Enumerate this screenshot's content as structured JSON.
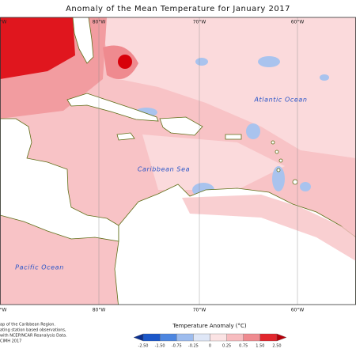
{
  "title": "Anomaly of the Mean Temperature for January 2017",
  "longitude_labels_top": [
    "°W",
    "80°W",
    "70°W",
    "60°W"
  ],
  "longitude_labels_bottom": [
    "°W",
    "80°W",
    "70°W",
    "60°W"
  ],
  "ocean_labels": [
    "Atlantic Ocean",
    "Caribbean Sea",
    "Pacific Ocean"
  ],
  "notes": [
    "ap of the Caribbean Region.",
    "ating station based observations,",
    "with NCEP/NCAR Reanalysis Data.",
    "CIMH 2017"
  ],
  "legend": {
    "title": "Temperature Anomaly (°C)",
    "ticks": [
      "-2.50",
      "-1.50",
      "-0.75",
      "-0.25",
      "0",
      "0.25",
      "0.75",
      "1.50",
      "2.50"
    ],
    "colors": [
      "#0b2f8e",
      "#1b57c9",
      "#4d86e0",
      "#9dbcee",
      "#dfe7f7",
      "#fbe3e4",
      "#f7bcbf",
      "#ef8a8f",
      "#e2262d",
      "#b5000a"
    ]
  }
}
